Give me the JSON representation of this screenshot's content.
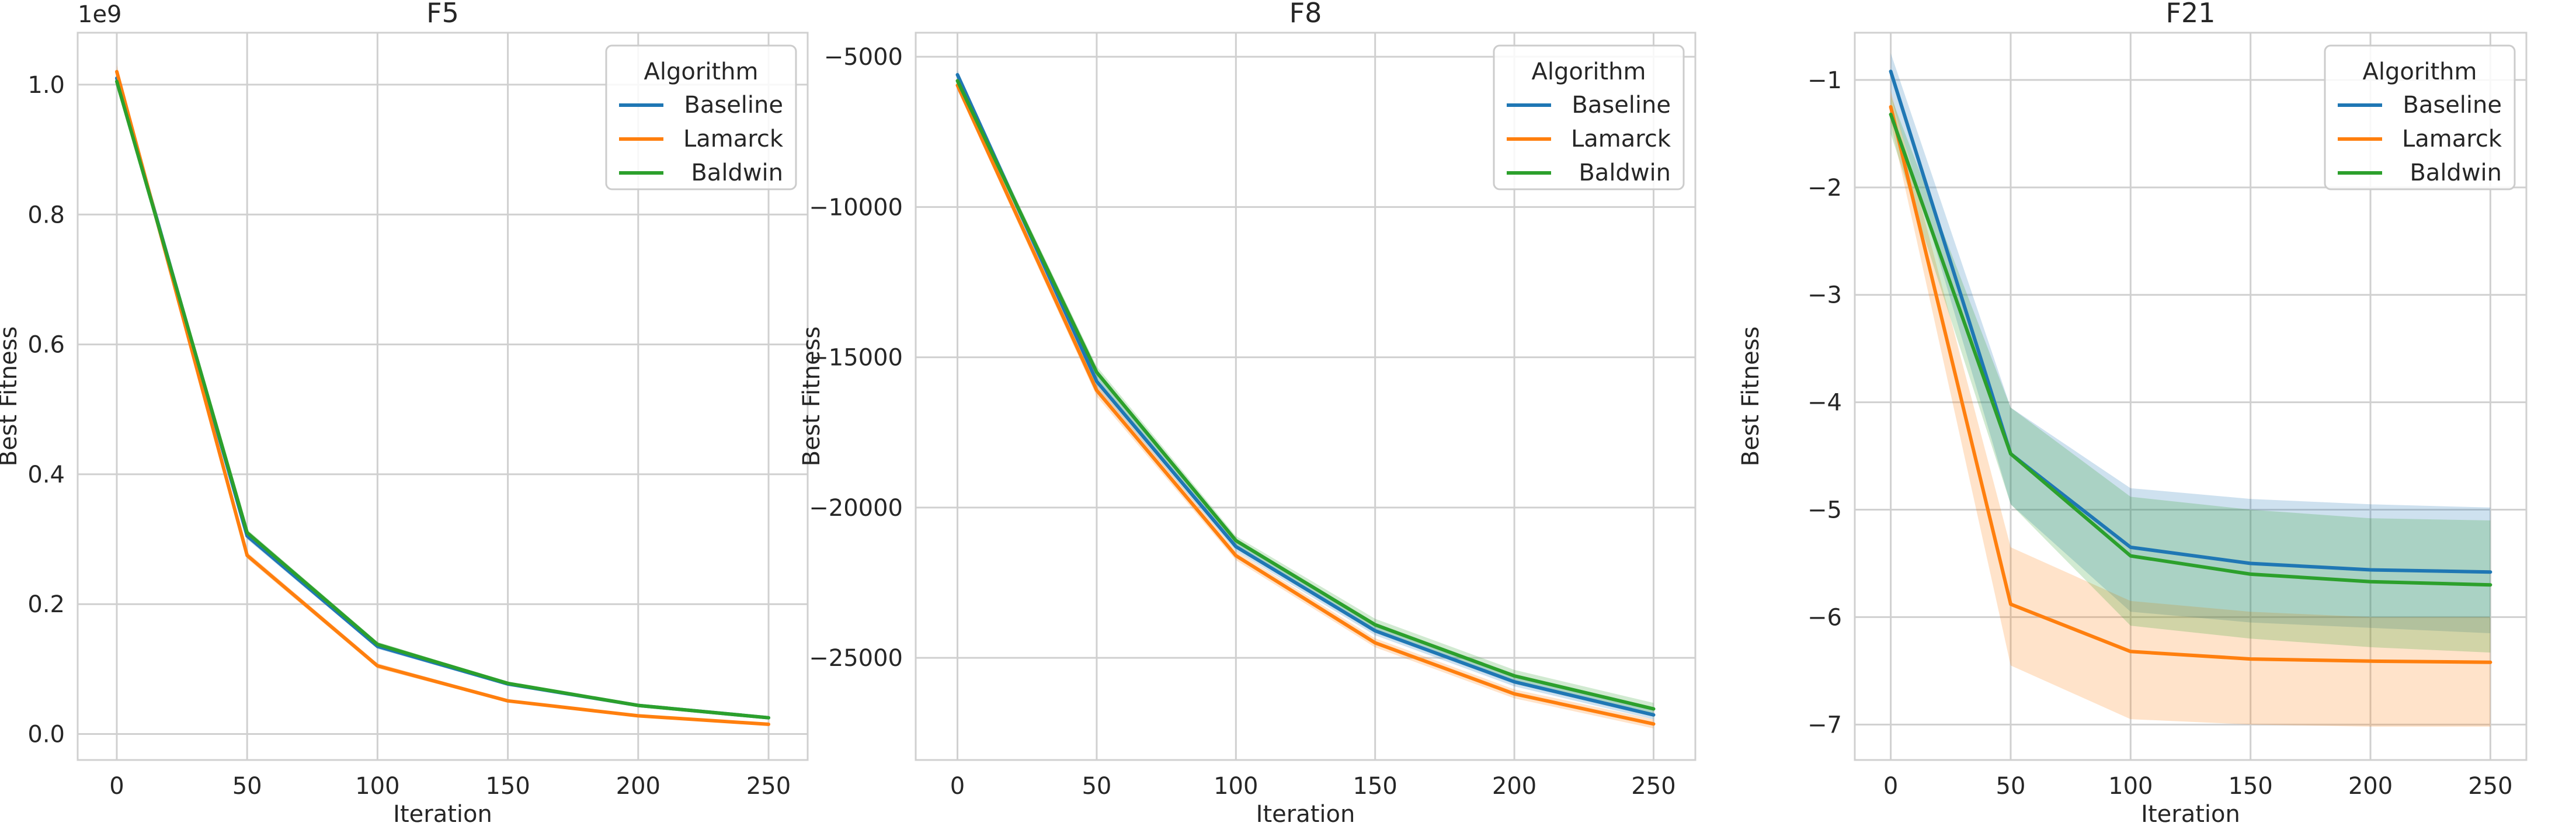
{
  "colors": {
    "Baseline": "#1f77b4",
    "Lamarck": "#ff7f0e",
    "Baldwin": "#2ca02c",
    "grid": "#d0d0d0",
    "text": "#262626"
  },
  "chart_data": [
    {
      "type": "line",
      "title": "F5",
      "xlabel": "Iteration",
      "ylabel": "Best Fitness",
      "offset_text": "1e9",
      "scale": 1000000000,
      "x": [
        0,
        50,
        100,
        150,
        200,
        250
      ],
      "xlim": [
        -15,
        265
      ],
      "ylim": [
        -0.04,
        1.08
      ],
      "xticks": [
        0,
        50,
        100,
        150,
        200,
        250
      ],
      "yticks": [
        0.0,
        0.2,
        0.4,
        0.6,
        0.8,
        1.0
      ],
      "ytick_labels": [
        "0.0",
        "0.2",
        "0.4",
        "0.6",
        "0.8",
        "1.0"
      ],
      "grid": true,
      "legend": {
        "title": "Algorithm",
        "position": "top-right"
      },
      "series": [
        {
          "name": "Baseline",
          "values": [
            1.01,
            0.305,
            0.135,
            0.077,
            0.044,
            0.025
          ],
          "lower": [
            1.0,
            0.3,
            0.131,
            0.075,
            0.042,
            0.024
          ],
          "upper": [
            1.02,
            0.31,
            0.139,
            0.079,
            0.046,
            0.026
          ]
        },
        {
          "name": "Lamarck",
          "values": [
            1.02,
            0.275,
            0.105,
            0.051,
            0.028,
            0.015
          ],
          "lower": [
            1.01,
            0.27,
            0.101,
            0.049,
            0.027,
            0.014
          ],
          "upper": [
            1.03,
            0.28,
            0.109,
            0.053,
            0.029,
            0.016
          ]
        },
        {
          "name": "Baldwin",
          "values": [
            1.005,
            0.31,
            0.138,
            0.078,
            0.044,
            0.025
          ],
          "lower": [
            0.995,
            0.305,
            0.134,
            0.076,
            0.042,
            0.024
          ],
          "upper": [
            1.015,
            0.315,
            0.142,
            0.08,
            0.046,
            0.026
          ]
        }
      ]
    },
    {
      "type": "line",
      "title": "F8",
      "xlabel": "Iteration",
      "ylabel": "Best Fitness",
      "scale": 1,
      "x": [
        0,
        50,
        100,
        150,
        200,
        250
      ],
      "xlim": [
        -15,
        265
      ],
      "ylim": [
        -28400,
        -4200
      ],
      "xticks": [
        0,
        50,
        100,
        150,
        200,
        250
      ],
      "yticks": [
        -25000,
        -20000,
        -15000,
        -10000,
        -5000
      ],
      "ytick_labels": [
        "−25000",
        "−20000",
        "−15000",
        "−10000",
        "−5000"
      ],
      "grid": true,
      "legend": {
        "title": "Algorithm",
        "position": "top-right"
      },
      "series": [
        {
          "name": "Baseline",
          "values": [
            -5600,
            -15800,
            -21300,
            -24100,
            -25800,
            -26900
          ],
          "lower": [
            -5750,
            -16000,
            -21450,
            -24250,
            -25950,
            -27050
          ],
          "upper": [
            -5450,
            -15600,
            -21150,
            -23950,
            -25650,
            -26750
          ]
        },
        {
          "name": "Lamarck",
          "values": [
            -5950,
            -16100,
            -21600,
            -24500,
            -26200,
            -27200
          ],
          "lower": [
            -6100,
            -16300,
            -21750,
            -24650,
            -26350,
            -27350
          ],
          "upper": [
            -5800,
            -15900,
            -21450,
            -24350,
            -26050,
            -27050
          ]
        },
        {
          "name": "Baldwin",
          "values": [
            -5800,
            -15500,
            -21100,
            -23900,
            -25600,
            -26700
          ],
          "lower": [
            -5950,
            -15700,
            -21250,
            -24100,
            -25800,
            -26900
          ],
          "upper": [
            -5650,
            -15300,
            -20950,
            -23700,
            -25400,
            -26500
          ]
        }
      ]
    },
    {
      "type": "line",
      "title": "F21",
      "xlabel": "Iteration",
      "ylabel": "Best Fitness",
      "scale": 1,
      "x": [
        0,
        50,
        100,
        150,
        200,
        250
      ],
      "xlim": [
        -15,
        265
      ],
      "ylim": [
        -7.33,
        -0.56
      ],
      "xticks": [
        0,
        50,
        100,
        150,
        200,
        250
      ],
      "yticks": [
        -7,
        -6,
        -5,
        -4,
        -3,
        -2,
        -1
      ],
      "ytick_labels": [
        "−7",
        "−6",
        "−5",
        "−4",
        "−3",
        "−2",
        "−1"
      ],
      "grid": true,
      "legend": {
        "title": "Algorithm",
        "position": "top-right"
      },
      "series": [
        {
          "name": "Baseline",
          "values": [
            -0.92,
            -4.48,
            -5.35,
            -5.5,
            -5.56,
            -5.58
          ],
          "lower": [
            -1.15,
            -4.95,
            -5.95,
            -6.05,
            -6.1,
            -6.15
          ],
          "upper": [
            -0.75,
            -4.05,
            -4.8,
            -4.9,
            -4.95,
            -4.98
          ]
        },
        {
          "name": "Lamarck",
          "values": [
            -1.25,
            -5.88,
            -6.32,
            -6.39,
            -6.41,
            -6.42
          ],
          "lower": [
            -1.4,
            -6.45,
            -6.95,
            -7.0,
            -7.02,
            -7.02
          ],
          "upper": [
            -1.1,
            -5.35,
            -5.85,
            -5.95,
            -6.0,
            -6.0
          ]
        },
        {
          "name": "Baldwin",
          "values": [
            -1.32,
            -4.48,
            -5.43,
            -5.6,
            -5.67,
            -5.7
          ],
          "lower": [
            -1.5,
            -4.95,
            -6.08,
            -6.2,
            -6.28,
            -6.33
          ],
          "upper": [
            -1.15,
            -4.05,
            -4.88,
            -5.0,
            -5.08,
            -5.1
          ]
        }
      ]
    }
  ]
}
